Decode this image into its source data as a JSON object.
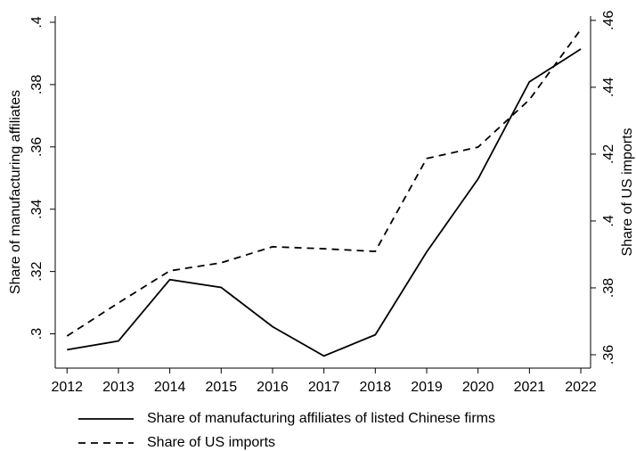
{
  "chart_data": {
    "type": "line",
    "x": [
      2012,
      2013,
      2014,
      2015,
      2016,
      2017,
      2018,
      2019,
      2020,
      2021,
      2022
    ],
    "series": [
      {
        "name": "Share of manufacturing affiliates of listed Chinese firms",
        "color": "#000000",
        "dash": "solid",
        "axis": "y",
        "values": [
          0.2949,
          0.2977,
          0.3174,
          0.3149,
          0.3023,
          0.2929,
          0.2997,
          0.3263,
          0.3497,
          0.3809,
          0.3914
        ]
      },
      {
        "name": "Share of US imports",
        "color": "#000000",
        "dash": "dashed",
        "axis": "y2",
        "values": [
          0.3656,
          0.3755,
          0.3851,
          0.3875,
          0.3923,
          0.3917,
          0.3909,
          0.4187,
          0.4221,
          0.4363,
          0.4573
        ]
      }
    ],
    "ylabel": "Share of manufacturing affiliates",
    "y2label": "Share of US imports",
    "xlim": [
      2011.77,
      2022.19
    ],
    "xticks": [
      2012,
      2013,
      2014,
      2015,
      2016,
      2017,
      2018,
      2019,
      2020,
      2021,
      2022
    ],
    "ylim": [
      0.289,
      0.402
    ],
    "yticks": [
      {
        "value": 0.3,
        "label": ".3"
      },
      {
        "value": 0.32,
        "label": ".32"
      },
      {
        "value": 0.34,
        "label": ".34"
      },
      {
        "value": 0.36,
        "label": ".36"
      },
      {
        "value": 0.38,
        "label": ".38"
      },
      {
        "value": 0.4,
        "label": ".4"
      }
    ],
    "y2lim": [
      0.356,
      0.4613
    ],
    "y2ticks": [
      {
        "value": 0.36,
        "label": ".36"
      },
      {
        "value": 0.38,
        "label": ".38"
      },
      {
        "value": 0.4,
        "label": ".4"
      },
      {
        "value": 0.42,
        "label": ".42"
      },
      {
        "value": 0.44,
        "label": ".44"
      },
      {
        "value": 0.46,
        "label": ".46"
      }
    ],
    "grid": false,
    "legend": "bottom"
  }
}
